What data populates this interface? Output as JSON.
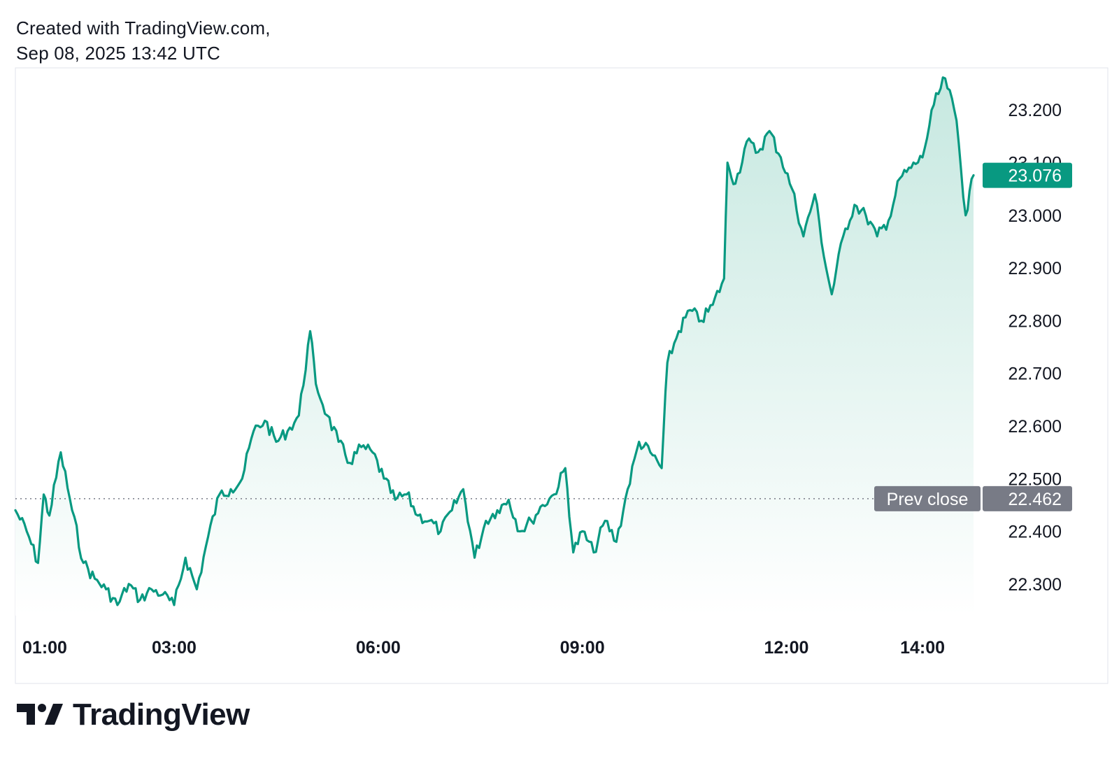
{
  "header": {
    "line1": "Created with TradingView.com,",
    "line2": "Sep 08, 2025 13:42 UTC"
  },
  "brand": {
    "name": "TradingView",
    "logo_icon": "tradingview-logo-icon"
  },
  "colors": {
    "line": "#089981",
    "fill_top": "#c6e8e0",
    "fill_bottom": "#ffffff",
    "last_price_label_bg": "#089981",
    "prev_close_label_bg": "#787b86",
    "axis_text": "#131722",
    "border": "#e0e3eb"
  },
  "chart_data": {
    "type": "area",
    "title": "",
    "xlabel": "",
    "ylabel": "",
    "x_ticks": [
      "01:00",
      "03:00",
      "06:00",
      "09:00",
      "12:00",
      "14:00"
    ],
    "y_ticks": [
      "22.300",
      "22.400",
      "22.500",
      "22.600",
      "22.700",
      "22.800",
      "22.900",
      "23.000",
      "23.100",
      "23.200"
    ],
    "ylim": [
      22.24,
      23.28
    ],
    "xlim": [
      "00:40",
      "14:45"
    ],
    "grid": false,
    "last_price": {
      "value": "23.076"
    },
    "prev_close": {
      "label": "Prev close",
      "value": "22.462"
    },
    "series": [
      {
        "points": [
          [
            "00:40",
            22.44
          ],
          [
            "00:50",
            22.4
          ],
          [
            "01:00",
            22.34
          ],
          [
            "01:05",
            22.47
          ],
          [
            "01:10",
            22.43
          ],
          [
            "01:20",
            22.55
          ],
          [
            "01:30",
            22.44
          ],
          [
            "01:40",
            22.34
          ],
          [
            "01:50",
            22.31
          ],
          [
            "02:00",
            22.29
          ],
          [
            "02:10",
            22.26
          ],
          [
            "02:20",
            22.3
          ],
          [
            "02:30",
            22.27
          ],
          [
            "02:40",
            22.29
          ],
          [
            "02:50",
            22.28
          ],
          [
            "03:00",
            22.26
          ],
          [
            "03:10",
            22.35
          ],
          [
            "03:20",
            22.29
          ],
          [
            "03:30",
            22.39
          ],
          [
            "03:40",
            22.47
          ],
          [
            "03:50",
            22.48
          ],
          [
            "04:00",
            22.5
          ],
          [
            "04:10",
            22.59
          ],
          [
            "04:20",
            22.61
          ],
          [
            "04:30",
            22.57
          ],
          [
            "04:40",
            22.59
          ],
          [
            "04:50",
            22.62
          ],
          [
            "05:00",
            22.78
          ],
          [
            "05:05",
            22.68
          ],
          [
            "05:15",
            22.62
          ],
          [
            "05:25",
            22.57
          ],
          [
            "05:35",
            22.53
          ],
          [
            "05:45",
            22.56
          ],
          [
            "05:55",
            22.55
          ],
          [
            "06:05",
            22.5
          ],
          [
            "06:15",
            22.46
          ],
          [
            "06:25",
            22.47
          ],
          [
            "06:35",
            22.43
          ],
          [
            "06:45",
            22.42
          ],
          [
            "06:55",
            22.4
          ],
          [
            "07:05",
            22.44
          ],
          [
            "07:15",
            22.48
          ],
          [
            "07:25",
            22.35
          ],
          [
            "07:35",
            22.42
          ],
          [
            "07:45",
            22.44
          ],
          [
            "07:55",
            22.46
          ],
          [
            "08:05",
            22.4
          ],
          [
            "08:15",
            22.42
          ],
          [
            "08:25",
            22.45
          ],
          [
            "08:35",
            22.47
          ],
          [
            "08:45",
            22.52
          ],
          [
            "08:52",
            22.36
          ],
          [
            "09:00",
            22.4
          ],
          [
            "09:10",
            22.36
          ],
          [
            "09:20",
            22.42
          ],
          [
            "09:30",
            22.38
          ],
          [
            "09:40",
            22.48
          ],
          [
            "09:50",
            22.57
          ],
          [
            "10:00",
            22.55
          ],
          [
            "10:10",
            22.52
          ],
          [
            "10:15",
            22.72
          ],
          [
            "10:25",
            22.78
          ],
          [
            "10:35",
            22.82
          ],
          [
            "10:45",
            22.8
          ],
          [
            "10:55",
            22.83
          ],
          [
            "11:05",
            22.88
          ],
          [
            "11:08",
            23.1
          ],
          [
            "11:15",
            23.06
          ],
          [
            "11:25",
            23.14
          ],
          [
            "11:35",
            23.12
          ],
          [
            "11:45",
            23.16
          ],
          [
            "11:55",
            23.11
          ],
          [
            "12:05",
            23.05
          ],
          [
            "12:15",
            22.96
          ],
          [
            "12:25",
            23.04
          ],
          [
            "12:35",
            22.9
          ],
          [
            "12:40",
            22.85
          ],
          [
            "12:50",
            22.96
          ],
          [
            "13:00",
            23.02
          ],
          [
            "13:10",
            23.0
          ],
          [
            "13:20",
            22.96
          ],
          [
            "13:30",
            22.99
          ],
          [
            "13:40",
            23.07
          ],
          [
            "13:50",
            23.09
          ],
          [
            "14:00",
            23.11
          ],
          [
            "14:10",
            23.21
          ],
          [
            "14:20",
            23.26
          ],
          [
            "14:30",
            23.18
          ],
          [
            "14:38",
            23.0
          ],
          [
            "14:45",
            23.076
          ]
        ]
      }
    ]
  }
}
